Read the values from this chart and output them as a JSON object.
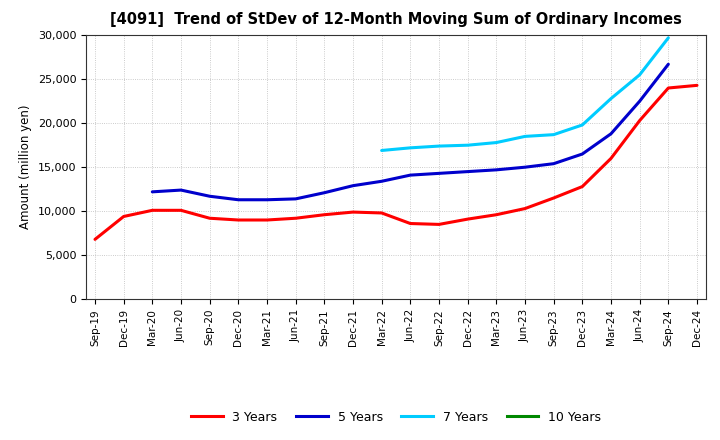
{
  "title": "[4091]  Trend of StDev of 12-Month Moving Sum of Ordinary Incomes",
  "ylabel": "Amount (million yen)",
  "ylim": [
    0,
    30000
  ],
  "yticks": [
    0,
    5000,
    10000,
    15000,
    20000,
    25000,
    30000
  ],
  "background_color": "#ffffff",
  "grid_color": "#aaaaaa",
  "xtick_labels": [
    "Sep-19",
    "Dec-19",
    "Mar-20",
    "Jun-20",
    "Sep-20",
    "Dec-20",
    "Mar-21",
    "Jun-21",
    "Sep-21",
    "Dec-21",
    "Mar-22",
    "Jun-22",
    "Sep-22",
    "Dec-22",
    "Mar-23",
    "Jun-23",
    "Sep-23",
    "Dec-23",
    "Mar-24",
    "Jun-24",
    "Sep-24",
    "Dec-24"
  ],
  "series": [
    {
      "label": "3 Years",
      "color": "#ff0000",
      "x_indices": [
        0,
        1,
        2,
        3,
        4,
        5,
        6,
        7,
        8,
        9,
        10,
        11,
        12,
        13,
        14,
        15,
        16,
        17,
        18,
        19,
        20,
        21
      ],
      "values": [
        6800,
        9400,
        10100,
        10100,
        9200,
        9000,
        9000,
        9200,
        9600,
        9900,
        9800,
        8600,
        8500,
        9100,
        9600,
        10300,
        11500,
        12800,
        16000,
        20300,
        24000,
        24300
      ]
    },
    {
      "label": "5 Years",
      "color": "#0000cc",
      "x_indices": [
        2,
        3,
        4,
        5,
        6,
        7,
        8,
        9,
        10,
        11,
        12,
        13,
        14,
        15,
        16,
        17,
        18,
        19,
        20
      ],
      "values": [
        12200,
        12400,
        11700,
        11300,
        11300,
        11400,
        12100,
        12900,
        13400,
        14100,
        14300,
        14500,
        14700,
        15000,
        15400,
        16500,
        18800,
        22500,
        26700
      ]
    },
    {
      "label": "7 Years",
      "color": "#00ccff",
      "x_indices": [
        10,
        11,
        12,
        13,
        14,
        15,
        16,
        17,
        18,
        19,
        20
      ],
      "values": [
        16900,
        17200,
        17400,
        17500,
        17800,
        18500,
        18700,
        19800,
        22800,
        25500,
        29700
      ]
    },
    {
      "label": "10 Years",
      "color": "#008800",
      "x_indices": [],
      "values": []
    }
  ],
  "legend_labels": [
    "3 Years",
    "5 Years",
    "7 Years",
    "10 Years"
  ],
  "legend_colors": [
    "#ff0000",
    "#0000cc",
    "#00ccff",
    "#008800"
  ]
}
